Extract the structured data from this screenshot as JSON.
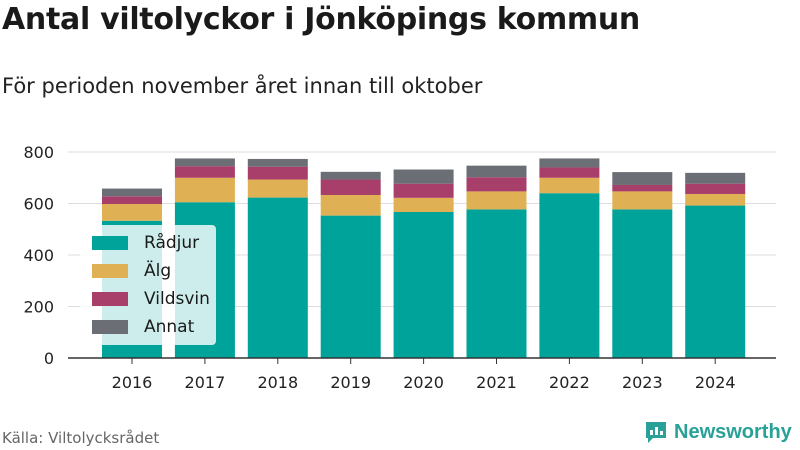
{
  "title": "Antal viltolyckor i Jönköpings kommun",
  "subtitle": "För perioden november året innan till oktober",
  "source": "Källa: Viltolycksrådet",
  "brand": "Newsworthy",
  "colors": {
    "Rådjur": "#00a39a",
    "Älg": "#e0b054",
    "Vildsvin": "#a83f6b",
    "Annat": "#6b6e74",
    "grid": "#dddddd",
    "axis": "#333333",
    "brand": "#2aa198"
  },
  "chart_data": {
    "type": "bar",
    "stacked": true,
    "categories": [
      "2016",
      "2017",
      "2018",
      "2019",
      "2020",
      "2021",
      "2022",
      "2023",
      "2024"
    ],
    "series": [
      {
        "name": "Rådjur",
        "values": [
          533,
          605,
          623,
          553,
          567,
          577,
          640,
          577,
          592
        ]
      },
      {
        "name": "Älg",
        "values": [
          65,
          95,
          70,
          80,
          55,
          70,
          60,
          70,
          45
        ]
      },
      {
        "name": "Vildsvin",
        "values": [
          30,
          45,
          50,
          60,
          55,
          55,
          40,
          25,
          40
        ]
      },
      {
        "name": "Annat",
        "values": [
          30,
          30,
          30,
          30,
          55,
          45,
          35,
          50,
          42
        ]
      }
    ],
    "yticks": [
      0,
      200,
      400,
      600,
      800
    ],
    "ylim": [
      0,
      800
    ],
    "grid": true,
    "legend_position": "bottom-left"
  }
}
